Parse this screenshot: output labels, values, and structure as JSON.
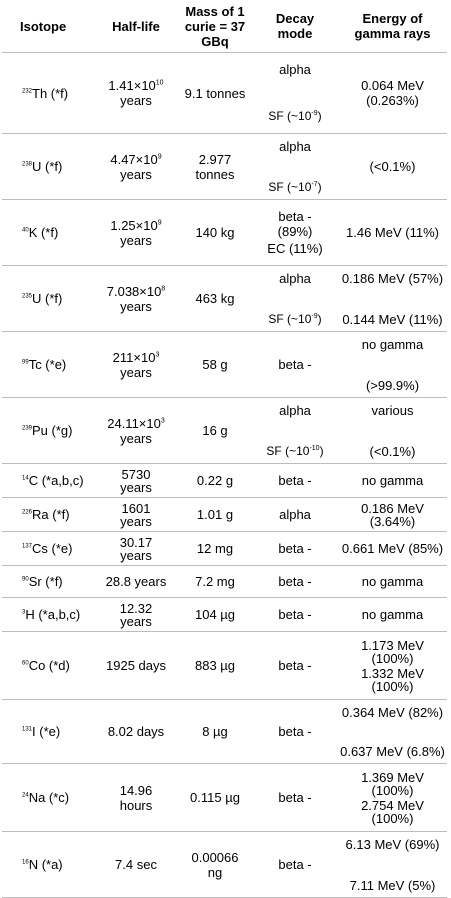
{
  "header": {
    "isotope": "Isotope",
    "half_life": "Half-life",
    "mass": "Mass of 1 curie = 37 GBq",
    "decay": "Decay mode",
    "energy": "Energy of gamma rays"
  },
  "rows": [
    {
      "iso_mass": "232",
      "iso_name": "Th  (*f)",
      "half_base": "1.41×10",
      "half_exp": "10",
      "half_unit": "years",
      "mass": "9.1 tonnes",
      "decay1": "alpha",
      "decay2_base": "SF (~10",
      "decay2_exp": "-9",
      "decay2_end": ")",
      "energy1": "0.064 MeV",
      "energy2": "(0.263%)"
    },
    {
      "iso_mass": "238",
      "iso_name": "U (*f)",
      "half_base": "4.47×10",
      "half_exp": "9",
      "half_unit": "years",
      "mass": "2.977 tonnes",
      "decay1": "alpha",
      "decay2_base": "SF (~10",
      "decay2_exp": "-7",
      "decay2_end": ")",
      "energy1": "(<0.1%)",
      "energy2": ""
    },
    {
      "iso_mass": "40",
      "iso_name": "K (*f)",
      "half_base": "1.25×10",
      "half_exp": "9",
      "half_unit": "years",
      "mass": "140 kg",
      "decay1": "beta - (89%)",
      "decay2": "EC (11%)",
      "energy1": "1.46 MeV (11%)",
      "energy2": ""
    },
    {
      "iso_mass": "235",
      "iso_name": "U (*f)",
      "half_base": "7.038×10",
      "half_exp": "8",
      "half_unit": "years",
      "mass": "463 kg",
      "decay1": "alpha",
      "decay2_base": "SF (~10",
      "decay2_exp": "-9",
      "decay2_end": ")",
      "energy1": "0.186 MeV (57%)",
      "energy2": "0.144 MeV (11%)"
    },
    {
      "iso_mass": "99",
      "iso_name": "Tc (*e)",
      "half_base": "211×10",
      "half_exp": "3",
      "half_unit": "years",
      "mass": "58 g",
      "decay1": "beta -",
      "decay2": "",
      "energy1": "no gamma",
      "energy2": "(>99.9%)"
    },
    {
      "iso_mass": "239",
      "iso_name": "Pu (*g)",
      "half_base": "24.11×10",
      "half_exp": "3",
      "half_unit": "years",
      "mass": "16 g",
      "decay1": "alpha",
      "decay2_base": "SF (~10",
      "decay2_exp": "-10",
      "decay2_end": ")",
      "energy1": "various",
      "energy2": "(<0.1%)"
    },
    {
      "iso_mass": "14",
      "iso_name": "C (*a,b,c)",
      "half_line1": "5730",
      "half_line2": "years",
      "mass": "0.22 g",
      "decay1": "beta -",
      "energy1": "no gamma"
    },
    {
      "iso_mass": "226",
      "iso_name": "Ra (*f)",
      "half_line1": "1601",
      "half_line2": "years",
      "mass": "1.01 g",
      "decay1": "alpha",
      "energy1": "0.186 MeV",
      "energy2": "(3.64%)"
    },
    {
      "iso_mass": "137",
      "iso_name": "Cs (*e)",
      "half_line1": "30.17",
      "half_line2": "years",
      "mass": "12 mg",
      "decay1": "beta -",
      "energy1": "0.661 MeV (85%)"
    },
    {
      "iso_mass": "90",
      "iso_name": "Sr (*f)",
      "half_line1": "28.8 years",
      "mass": "7.2 mg",
      "decay1": "beta -",
      "energy1": "no gamma"
    },
    {
      "iso_mass": "3",
      "iso_name": "H (*a,b,c)",
      "half_line1": "12.32",
      "half_line2": "years",
      "mass": "104 µg",
      "decay1": "beta -",
      "energy1": "no gamma"
    },
    {
      "iso_mass": "60",
      "iso_name": "Co (*d)",
      "half_line1": "1925 days",
      "mass": "883 µg",
      "decay1": "beta -",
      "energy1": "1.173 MeV",
      "energy2": "(100%)",
      "energy3": "1.332 MeV",
      "energy4": "(100%)"
    },
    {
      "iso_mass": "131",
      "iso_name": "I (*e)",
      "half_line1": "8.02 days",
      "mass": "8 µg",
      "decay1": "beta -",
      "energy1": "0.364 MeV (82%)",
      "energy2": "0.637 MeV (6.8%)"
    },
    {
      "iso_mass": "24",
      "iso_name": "Na (*c)",
      "half_line1": "14.96",
      "half_line2": "hours",
      "mass": "0.115 µg",
      "decay1": "beta -",
      "energy1": "1.369 MeV",
      "energy2": "(100%)",
      "energy3": "2.754 MeV",
      "energy4": "(100%)"
    },
    {
      "iso_mass": "16",
      "iso_name": "N (*a)",
      "half_line1": "7.4 sec",
      "mass": "0.00066",
      "mass2": "ng",
      "decay1": "beta -",
      "energy1": "6.13 MeV (69%)",
      "energy2": "7.11 MeV (5%)"
    }
  ]
}
